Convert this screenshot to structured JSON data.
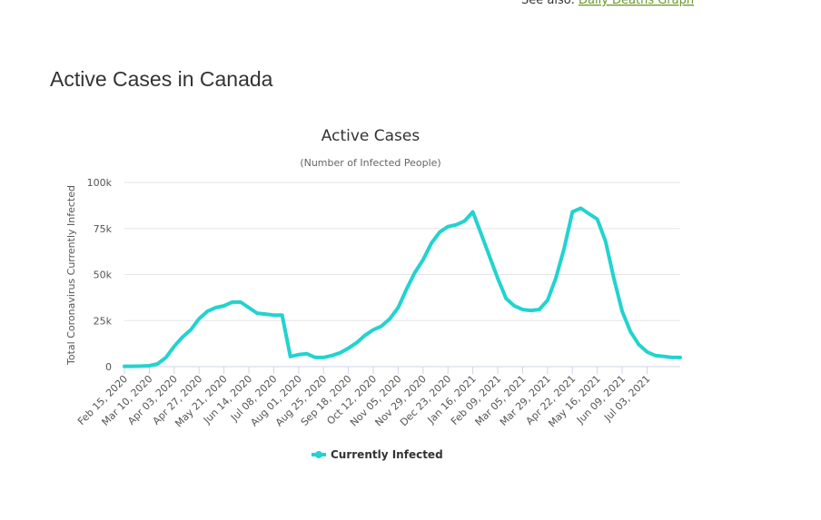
{
  "header": {
    "see_also": "See also:",
    "see_also_link": "Daily Deaths Graph",
    "title": "Active Cases in Canada"
  },
  "chart_data": {
    "type": "line",
    "title": "Active Cases",
    "subtitle": "(Number of Infected People)",
    "y_label": "Total Coronavirus Currently Infected",
    "categories": [
      "Feb 15, 2020",
      null,
      null,
      "Mar 10, 2020",
      null,
      null,
      "Apr 03, 2020",
      null,
      null,
      "Apr 27, 2020",
      null,
      null,
      "May 21, 2020",
      null,
      null,
      "Jun 14, 2020",
      null,
      null,
      "Jul 08, 2020",
      null,
      null,
      "Aug 01, 2020",
      null,
      null,
      "Aug 25, 2020",
      null,
      null,
      "Sep 18, 2020",
      null,
      null,
      "Oct 12, 2020",
      null,
      null,
      "Nov 05, 2020",
      null,
      null,
      "Nov 29, 2020",
      null,
      null,
      "Dec 23, 2020",
      null,
      null,
      "Jan 16, 2021",
      null,
      null,
      "Feb 09, 2021",
      null,
      null,
      "Mar 05, 2021",
      null,
      null,
      "Mar 29, 2021",
      null,
      null,
      "Apr 22, 2021",
      null,
      null,
      "May 16, 2021",
      null,
      null,
      "Jun 09, 2021",
      null,
      null,
      "Jul 03, 2021",
      null,
      null,
      null,
      null
    ],
    "series": [
      {
        "name": "Currently Infected",
        "color": "#22d3cf",
        "values": [
          200,
          200,
          300,
          500,
          1500,
          5000,
          11000,
          16000,
          20000,
          26000,
          30000,
          32000,
          33000,
          35000,
          35000,
          32000,
          29000,
          28500,
          28000,
          28000,
          5500,
          6500,
          7000,
          5000,
          5000,
          6000,
          7500,
          10000,
          13000,
          17000,
          20000,
          22000,
          26000,
          32000,
          42000,
          51000,
          58000,
          67000,
          73000,
          76000,
          77000,
          79000,
          84000,
          72000,
          60000,
          48000,
          37000,
          33000,
          31000,
          30500,
          31000,
          36000,
          48000,
          64000,
          84000,
          86000,
          83000,
          80000,
          68000,
          48000,
          30000,
          19000,
          12000,
          8000,
          6000,
          5500,
          5000,
          5000
        ]
      }
    ],
    "ylim": [
      0,
      100000
    ],
    "yticks": [
      0,
      {
        "value": 25000,
        "label": "25k"
      },
      {
        "value": 50000,
        "label": "50k"
      },
      {
        "value": 75000,
        "label": "75k"
      },
      {
        "value": 100000,
        "label": "100k"
      }
    ],
    "grid": true,
    "legend": "bottom"
  }
}
